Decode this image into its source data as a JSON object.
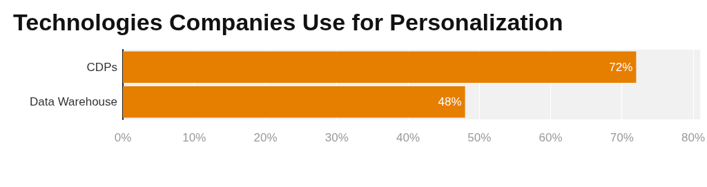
{
  "chart_data": {
    "type": "bar",
    "orientation": "horizontal",
    "title": "Technologies Companies Use for Personalization",
    "categories": [
      "CDPs",
      "Data Warehouse"
    ],
    "values": [
      72,
      48
    ],
    "color": "#e67e00",
    "value_labels": [
      "72%",
      "48%"
    ],
    "xlim": [
      0,
      81
    ],
    "xticks": [
      {
        "value": 0,
        "label": "0%"
      },
      {
        "value": 10,
        "label": "10%"
      },
      {
        "value": 20,
        "label": "20%"
      },
      {
        "value": 30,
        "label": "30%"
      },
      {
        "value": 40,
        "label": "40%"
      },
      {
        "value": 50,
        "label": "50%"
      },
      {
        "value": 60,
        "label": "60%"
      },
      {
        "value": 70,
        "label": "70%"
      },
      {
        "value": 80,
        "label": "80%"
      }
    ],
    "grid": "x"
  }
}
